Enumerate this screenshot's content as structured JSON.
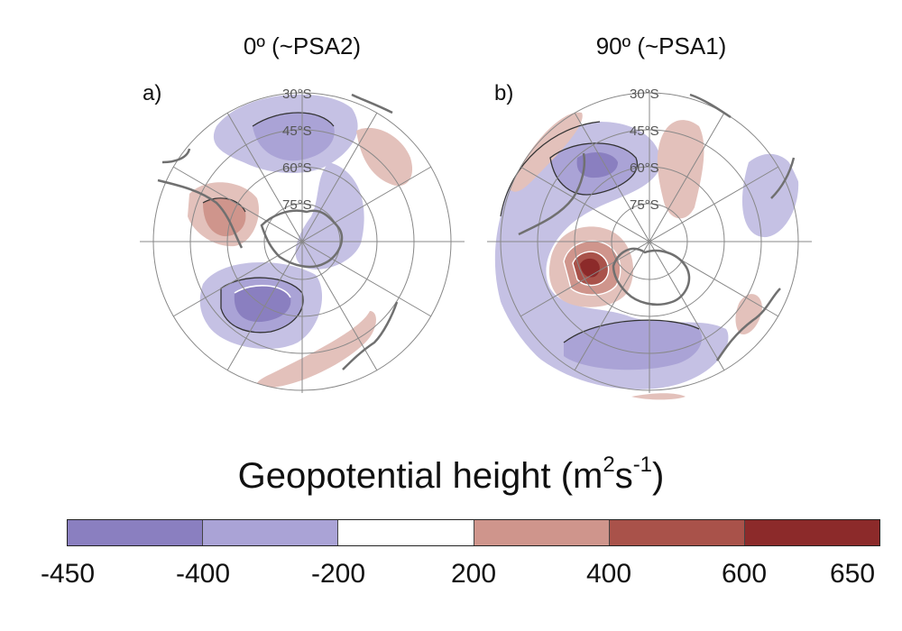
{
  "panels": [
    {
      "label": "a)",
      "title": "0º (~PSA2)"
    },
    {
      "label": "b)",
      "title": "90º (~PSA1)"
    }
  ],
  "latitude_labels": [
    "30°S",
    "45°S",
    "60°S",
    "75°S"
  ],
  "colorbar": {
    "title_main": "Geopotential height (m",
    "title_sup1": "2",
    "title_mid": "s",
    "title_sup2": "-1",
    "title_end": ")",
    "ticks": [
      "-450",
      "-400",
      "-200",
      "200",
      "400",
      "600",
      "650"
    ],
    "colors": [
      "#8a7fc0",
      "#aaa3d6",
      "#ffffff",
      "#cf958c",
      "#a9524a",
      "#8c2a2a"
    ]
  }
}
